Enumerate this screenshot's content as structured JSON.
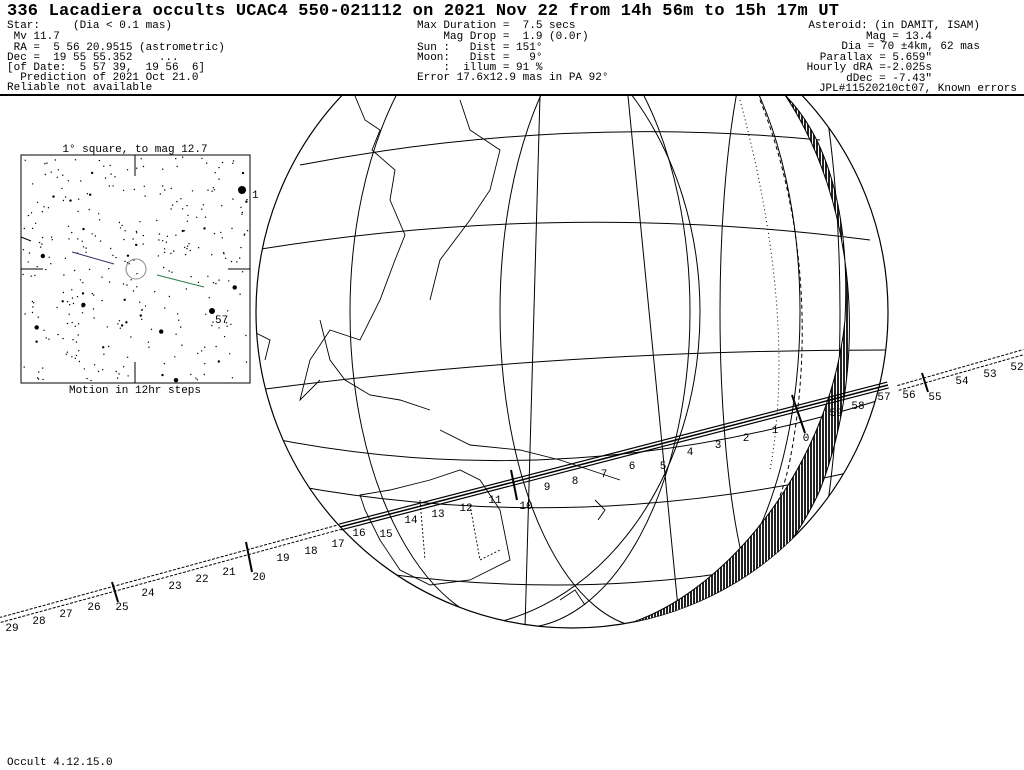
{
  "title": "336 Lacadiera occults UCAC4 550-021112 on 2021 Nov 22 from 14h 56m to 15h 17m UT",
  "star": {
    "lines": [
      "Star:     (Dia < 0.1 mas)",
      " Mv 11.7",
      " RA =  5 56 20.9515 (astrometric)",
      "Dec =  19 55 55.352    ...",
      "[of Date:  5 57 39,  19 56  6]",
      "  Prediction of 2021 Oct 21.0",
      "Reliable not available"
    ]
  },
  "event": {
    "lines": [
      "Max Duration =  7.5 secs",
      "    Mag Drop =  1.9 (0.0r)",
      "Sun :   Dist = 151°",
      "Moon:   Dist =   9°",
      "    :  illum = 91 %",
      "Error 17.6x12.9 mas in PA 92°"
    ]
  },
  "asteroid": {
    "lines": [
      "Asteroid: (in DAMIT, ISAM)",
      "Mag = 13.4",
      "Dia = 70 ±4km, 62 mas",
      "Parallax = 5.659\"",
      "Hourly dRA =-2.025s",
      "dDec = -7.43\"",
      "JPL#11520210ct07, Known errors"
    ]
  },
  "inset": {
    "title": "1° square, to mag 12.7",
    "caption": "Motion in 12hr steps",
    "star_labels": [
      "1",
      "57"
    ]
  },
  "path": {
    "minute_labels": [
      "0",
      "1",
      "2",
      "3",
      "4",
      "5",
      "6",
      "7",
      "8",
      "9",
      "10",
      "11",
      "12",
      "13",
      "14",
      "15",
      "16",
      "17",
      "18",
      "19",
      "20",
      "21",
      "22",
      "23",
      "24",
      "25",
      "26",
      "27",
      "28",
      "29",
      "52",
      "53",
      "54",
      "55",
      "56",
      "57",
      "58",
      "59"
    ]
  },
  "footer": "Occult 4.12.15.0",
  "colors": {
    "shadow_path": "#000000",
    "motion_after": "#2e7d4f",
    "motion_before": "#333366",
    "terminator": "#000000"
  }
}
